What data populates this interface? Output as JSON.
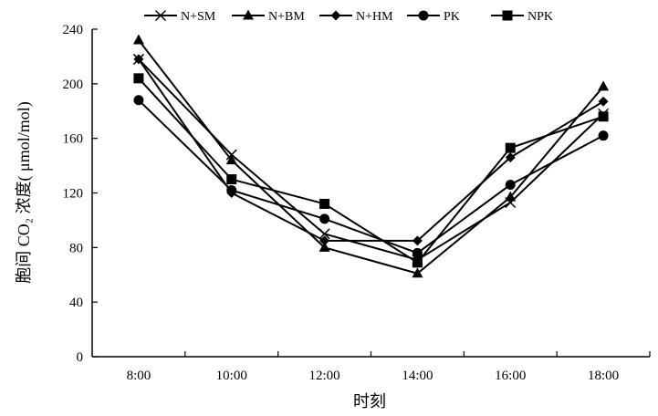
{
  "chart_data": {
    "type": "line",
    "title": "",
    "xlabel": "时刻",
    "ylabel": "胞间 CO₂ 浓度( μmol/mol)",
    "categories": [
      "8:00",
      "10:00",
      "12:00",
      "14:00",
      "16:00",
      "18:00"
    ],
    "ylim": [
      0,
      240
    ],
    "yticks": [
      0,
      40,
      80,
      120,
      160,
      200,
      240
    ],
    "grid": false,
    "legend_position": "top",
    "series": [
      {
        "name": "N+SM",
        "marker": "x",
        "values": [
          218,
          148,
          90,
          71,
          113,
          178
        ]
      },
      {
        "name": "N+BM",
        "marker": "triangle",
        "values": [
          232,
          144,
          80,
          61,
          117,
          198
        ]
      },
      {
        "name": "N+HM",
        "marker": "diamond",
        "values": [
          218,
          120,
          85,
          85,
          146,
          187
        ]
      },
      {
        "name": "PK",
        "marker": "circle",
        "values": [
          188,
          122,
          101,
          76,
          126,
          162
        ]
      },
      {
        "name": "NPK",
        "marker": "square",
        "values": [
          204,
          130,
          112,
          69,
          153,
          176
        ]
      }
    ]
  }
}
